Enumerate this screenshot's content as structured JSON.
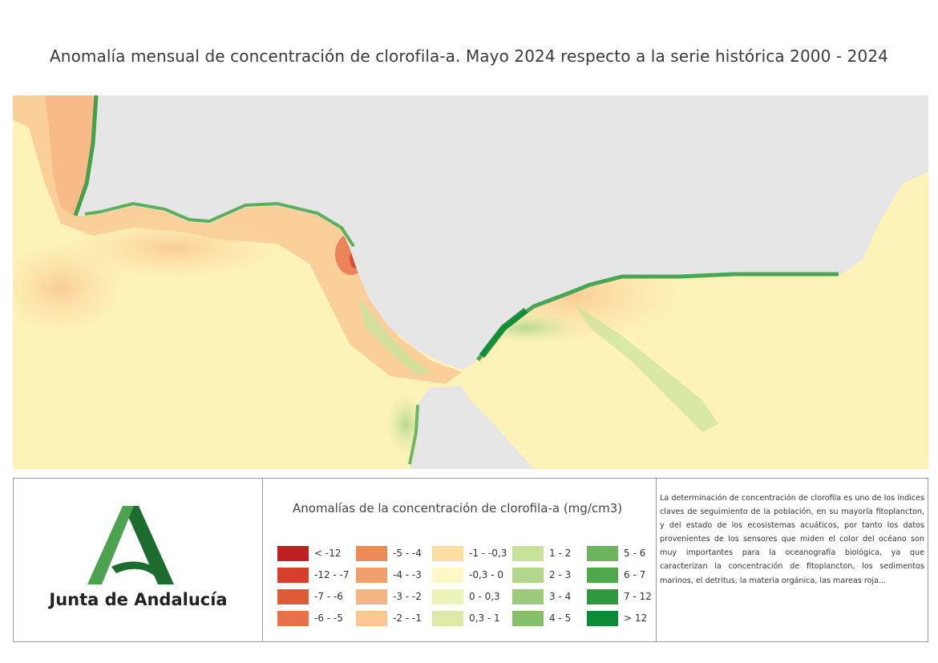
{
  "title": "Anomalía mensual de concentración de clorofila-a. Mayo 2024 respecto a la serie histórica 2000 - 2024",
  "map": {
    "colors": {
      "land": "#e6e6e6",
      "sea_base": "#fdf3b8"
    }
  },
  "logo": {
    "text": "Junta de Andalucía",
    "colors": {
      "dark": "#1d6b2f",
      "light": "#4ca24f"
    }
  },
  "legend": {
    "title": "Anomalías de la concentración de clorofila-a (mg/cm3)",
    "items": [
      {
        "label": "< -12",
        "color": "#c01f23"
      },
      {
        "label": "-12 - -7",
        "color": "#d63f2c"
      },
      {
        "label": "-7 - -6",
        "color": "#df5a37"
      },
      {
        "label": "-6 - -5",
        "color": "#e8714a"
      },
      {
        "label": "-5 - -4",
        "color": "#ec8a58"
      },
      {
        "label": "-4 - -3",
        "color": "#f29d6c"
      },
      {
        "label": "-3 - -2",
        "color": "#f6b483"
      },
      {
        "label": "-2 - -1",
        "color": "#f9c894"
      },
      {
        "label": "-1 - -0,3",
        "color": "#fddea2"
      },
      {
        "label": "-0,3 - 0",
        "color": "#fef8c6"
      },
      {
        "label": "0 - 0,3",
        "color": "#eef3b7"
      },
      {
        "label": "0,3 - 1",
        "color": "#dde9a6"
      },
      {
        "label": "1 - 2",
        "color": "#c9e29b"
      },
      {
        "label": "2 - 3",
        "color": "#b2d68c"
      },
      {
        "label": "3 - 4",
        "color": "#9ccb7c"
      },
      {
        "label": "4 - 5",
        "color": "#84c06b"
      },
      {
        "label": "5 - 6",
        "color": "#6cb55e"
      },
      {
        "label": "6 - 7",
        "color": "#4fa84a"
      },
      {
        "label": "7 - 12",
        "color": "#2e9a3d"
      },
      {
        "label": "> 12",
        "color": "#0b8b34"
      }
    ]
  },
  "description": "La determinación de concentración de clorofila es uno de los índices claves de seguimiento de la población, en su mayoría fitoplancton, y del estado de los ecosistemas acuáticos, por tanto los datos provenientes de los sensores que miden el color del océano son muy importantes para la oceanografía biológica, ya que caracterizan la concentración de fitoplancton, los sedimentos marinos, el detritus, la materia orgánica, las mareas roja..."
}
